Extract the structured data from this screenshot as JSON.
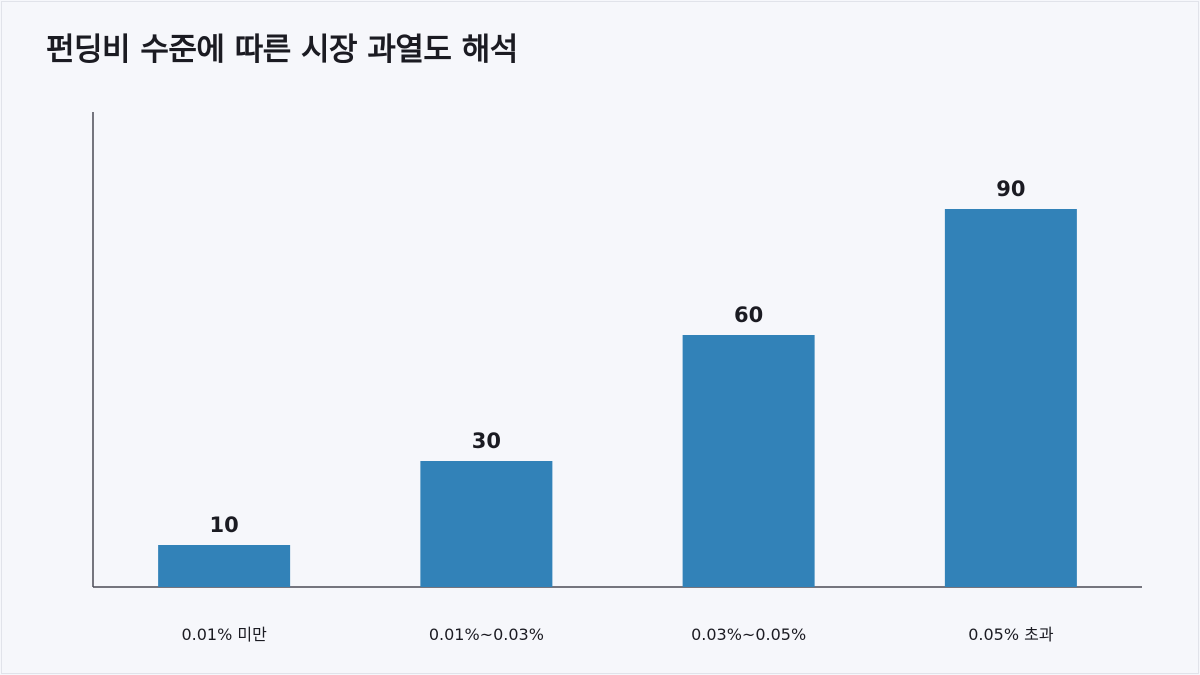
{
  "chart_data": {
    "type": "bar",
    "title": "펀딩비 수준에 따른 시장 과열도 해석",
    "categories": [
      "0.01% 미만",
      "0.01%~0.03%",
      "0.03%~0.05%",
      "0.05% 초과"
    ],
    "values": [
      10,
      30,
      60,
      90
    ],
    "xlabel": "",
    "ylabel": "",
    "ylim": [
      0,
      100
    ],
    "grid": false,
    "legend": "none",
    "bar_color": "#3282b8",
    "axis_color": "#4a4a55",
    "label_color": "#1b1b22"
  }
}
